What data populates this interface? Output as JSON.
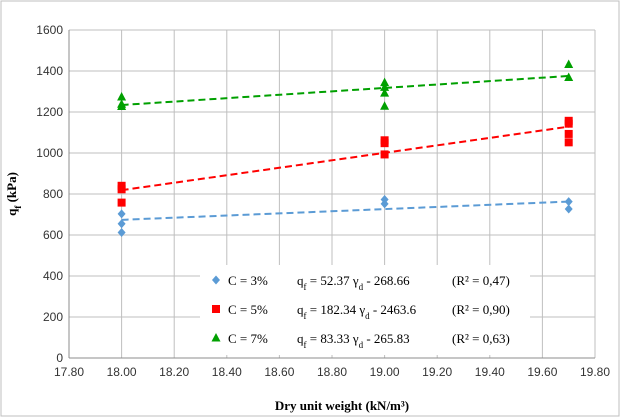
{
  "chart_data": {
    "type": "scatter",
    "xlabel": "Dry unit weight (kN/m³)",
    "ylabel": {
      "main": "q",
      "sub": "f",
      "unit": " (kPa)"
    },
    "xlim": [
      17.8,
      19.8
    ],
    "ylim": [
      0,
      1600
    ],
    "xticks": [
      "17.80",
      "18.00",
      "18.20",
      "18.40",
      "18.60",
      "18.80",
      "19.00",
      "19.20",
      "19.40",
      "19.60",
      "19.80"
    ],
    "yticks": [
      "0",
      "200",
      "400",
      "600",
      "800",
      "1000",
      "1200",
      "1400",
      "1600"
    ],
    "grid": true,
    "legend_position": "bottom-center",
    "series": [
      {
        "name": "C = 3%",
        "color": "#5b9bd5",
        "marker": "diamond",
        "points": [
          [
            18.0,
            612
          ],
          [
            18.0,
            655
          ],
          [
            18.0,
            703
          ],
          [
            19.0,
            752
          ],
          [
            19.0,
            773
          ],
          [
            19.7,
            727
          ],
          [
            19.7,
            763
          ]
        ],
        "trend": {
          "slope": 52.37,
          "intercept": -268.66
        },
        "legend": {
          "name": "C = 3%",
          "eq_main": "q",
          "eq_sub1": "f",
          "eq_mid": " = 52.37 γ",
          "eq_sub2": "d",
          "eq_tail": " - 268.66",
          "r2": "(R² = 0,47)"
        }
      },
      {
        "name": "C = 5%",
        "color": "#ff0000",
        "marker": "square",
        "points": [
          [
            18.0,
            758
          ],
          [
            18.0,
            823
          ],
          [
            18.0,
            840
          ],
          [
            19.0,
            993
          ],
          [
            19.0,
            1048
          ],
          [
            19.0,
            1062
          ],
          [
            19.7,
            1052
          ],
          [
            19.7,
            1093
          ],
          [
            19.7,
            1143
          ],
          [
            19.7,
            1157
          ]
        ],
        "trend": {
          "slope": 182.34,
          "intercept": -2463.6
        },
        "legend": {
          "name": "C = 5%",
          "eq_main": "q",
          "eq_sub1": "f",
          "eq_mid": " = 182.34 γ",
          "eq_sub2": "d",
          "eq_tail": " - 2463.6",
          "r2": "(R² = 0,90)"
        }
      },
      {
        "name": "C = 7%",
        "color": "#00a000",
        "marker": "triangle",
        "points": [
          [
            18.0,
            1227
          ],
          [
            18.0,
            1238
          ],
          [
            18.0,
            1273
          ],
          [
            19.0,
            1228
          ],
          [
            19.0,
            1292
          ],
          [
            19.0,
            1320
          ],
          [
            19.0,
            1343
          ],
          [
            19.7,
            1368
          ],
          [
            19.7,
            1432
          ]
        ],
        "trend": {
          "slope": 83.33,
          "intercept": -265.83
        },
        "legend": {
          "name": "C = 7%",
          "eq_main": "q",
          "eq_sub1": "f",
          "eq_mid": " = 83.33 γ",
          "eq_sub2": "d",
          "eq_tail": " - 265.83",
          "r2": "(R² = 0,63)"
        }
      }
    ]
  }
}
